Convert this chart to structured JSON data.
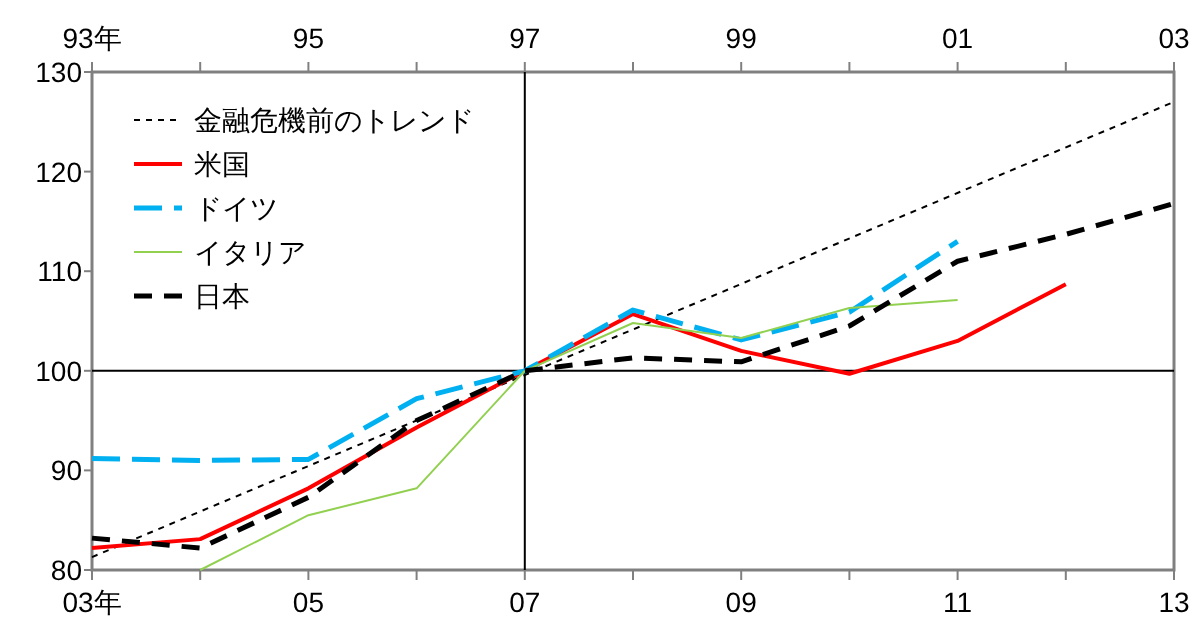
{
  "chart_data": {
    "type": "line",
    "x": [
      "2003",
      "2004",
      "2005",
      "2006",
      "2007",
      "2008",
      "2009",
      "2010",
      "2011",
      "2012"
    ],
    "xlim": [
      "2003",
      "2013"
    ],
    "xticks": [
      {
        "value": "2003",
        "label": "03年"
      },
      {
        "value": "2004",
        "label": null
      },
      {
        "value": "2005",
        "label": "05"
      },
      {
        "value": "2006",
        "label": null
      },
      {
        "value": "2007",
        "label": "07"
      },
      {
        "value": "2008",
        "label": null
      },
      {
        "value": "2009",
        "label": "09"
      },
      {
        "value": "2010",
        "label": null
      },
      {
        "value": "2011",
        "label": "11"
      },
      {
        "value": "2012",
        "label": null
      },
      {
        "value": "2013",
        "label": "13"
      }
    ],
    "x2lim": [
      "1993",
      "2003"
    ],
    "x2ticks": [
      {
        "value": "1993",
        "label": "93年"
      },
      {
        "value": "1994",
        "label": null
      },
      {
        "value": "1995",
        "label": "95"
      },
      {
        "value": "1996",
        "label": null
      },
      {
        "value": "1997",
        "label": "97"
      },
      {
        "value": "1998",
        "label": null
      },
      {
        "value": "1999",
        "label": "99"
      },
      {
        "value": "2000",
        "label": null
      },
      {
        "value": "2001",
        "label": "01"
      },
      {
        "value": "2002",
        "label": null
      },
      {
        "value": "2003",
        "label": "03"
      }
    ],
    "ylim": [
      80,
      130
    ],
    "yticks": [
      80,
      90,
      100,
      110,
      120,
      130
    ],
    "grid": false,
    "legend": "top left",
    "marker": "none",
    "ref_lines": [
      {
        "axis": "y",
        "value": 100,
        "color": "#000000",
        "line_style": "solid"
      },
      {
        "axis": "x",
        "value": "2007",
        "color": "#000000",
        "line_style": "solid"
      }
    ],
    "series": [
      {
        "name": "金融危機前のトレンド",
        "color": "#000000",
        "line_style": "dotted",
        "x": [
          "2003",
          "2013"
        ],
        "values": [
          81.3,
          127
        ]
      },
      {
        "name": "米国",
        "color": "#ff0000",
        "line_style": "solid",
        "values": [
          82.2,
          83.1,
          88.2,
          94.3,
          100,
          105.7,
          102,
          99.7,
          103,
          108.7
        ]
      },
      {
        "name": "ドイツ",
        "color": "#00b0f0",
        "line_style": "dashed",
        "values": [
          91.2,
          91.0,
          91.1,
          97.2,
          100,
          106.1,
          103.1,
          105.9,
          113,
          null
        ]
      },
      {
        "name": "イタリア",
        "color": "#92d050",
        "line_style": "solid",
        "values": [
          null,
          80,
          85.5,
          88.2,
          100,
          104.8,
          103.3,
          106.3,
          107.1,
          null
        ]
      },
      {
        "name": "日本",
        "color": "#000000",
        "line_style": "dashed",
        "axis": "x2",
        "x": [
          "1993",
          "1994",
          "1995",
          "1996",
          "1997",
          "1998",
          "1999",
          "2000",
          "2001",
          "2002",
          "2003"
        ],
        "values": [
          83.2,
          82.2,
          87.3,
          95,
          100,
          101.3,
          100.9,
          104.5,
          111,
          113.7,
          116.8
        ]
      }
    ]
  }
}
